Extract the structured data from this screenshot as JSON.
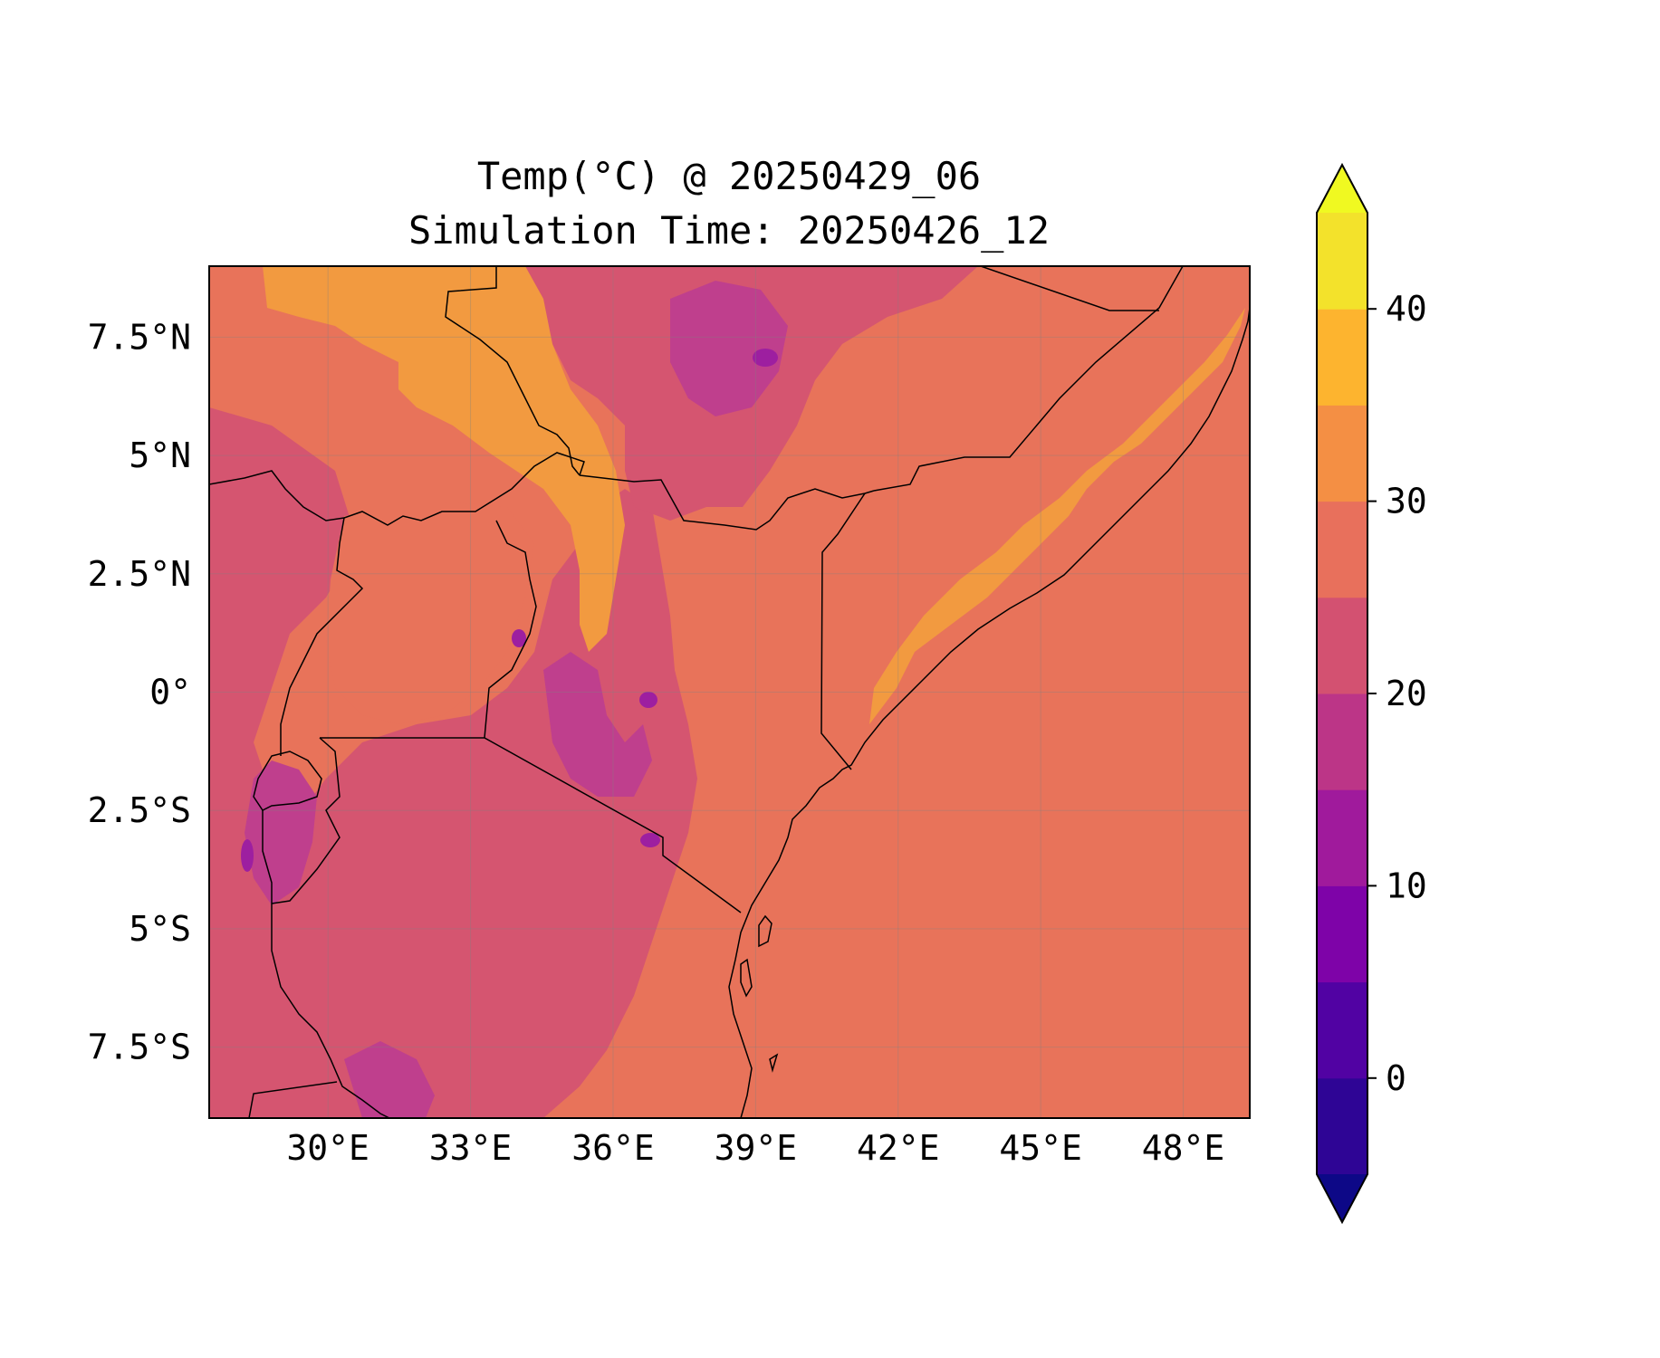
{
  "title": {
    "line1": "Temp(°C) @ 20250429_06",
    "line2": "Simulation Time: 20250426_12"
  },
  "map": {
    "projection": "PlateCarree",
    "lon_range_deg": [
      27.5,
      49.4
    ],
    "lat_range_deg": [
      -9,
      9
    ],
    "lon_ticks": [
      {
        "value": 30,
        "label": "30°E"
      },
      {
        "value": 33,
        "label": "33°E"
      },
      {
        "value": 36,
        "label": "36°E"
      },
      {
        "value": 39,
        "label": "39°E"
      },
      {
        "value": 42,
        "label": "42°E"
      },
      {
        "value": 45,
        "label": "45°E"
      },
      {
        "value": 48,
        "label": "48°E"
      }
    ],
    "lat_ticks": [
      {
        "value": 7.5,
        "label": "7.5°N"
      },
      {
        "value": 5,
        "label": "5°N"
      },
      {
        "value": 2.5,
        "label": "2.5°N"
      },
      {
        "value": 0,
        "label": "0°"
      },
      {
        "value": -2.5,
        "label": "2.5°S"
      },
      {
        "value": -5,
        "label": "5°S"
      },
      {
        "value": -7.5,
        "label": "7.5°S"
      }
    ],
    "gridlines": true
  },
  "colorbar": {
    "orientation": "vertical",
    "extend": "both",
    "levels": [
      -5,
      0,
      5,
      10,
      15,
      20,
      25,
      30,
      35,
      40,
      45
    ],
    "tick_labels": [
      {
        "value": 0,
        "label": "0"
      },
      {
        "value": 10,
        "label": "10"
      },
      {
        "value": 20,
        "label": "20"
      },
      {
        "value": 30,
        "label": "30"
      },
      {
        "value": 40,
        "label": "40"
      }
    ],
    "colors": {
      "under": "#0d0887",
      "bands": [
        "#2e0595",
        "#5102a3",
        "#7e03a8",
        "#a01a9c",
        "#bc3587",
        "#d35171",
        "#e8705c",
        "#f48f44",
        "#fdb42f",
        "#f3e22b"
      ],
      "over": "#f0f921"
    }
  },
  "colors": {
    "ocean": "#e8735a",
    "land_base": "#d55570",
    "hot_band": "#f29a40",
    "warm": "#e8735a",
    "cool": "#bf3f8d",
    "cold": "#9d1fa0",
    "borders": "#000000"
  }
}
